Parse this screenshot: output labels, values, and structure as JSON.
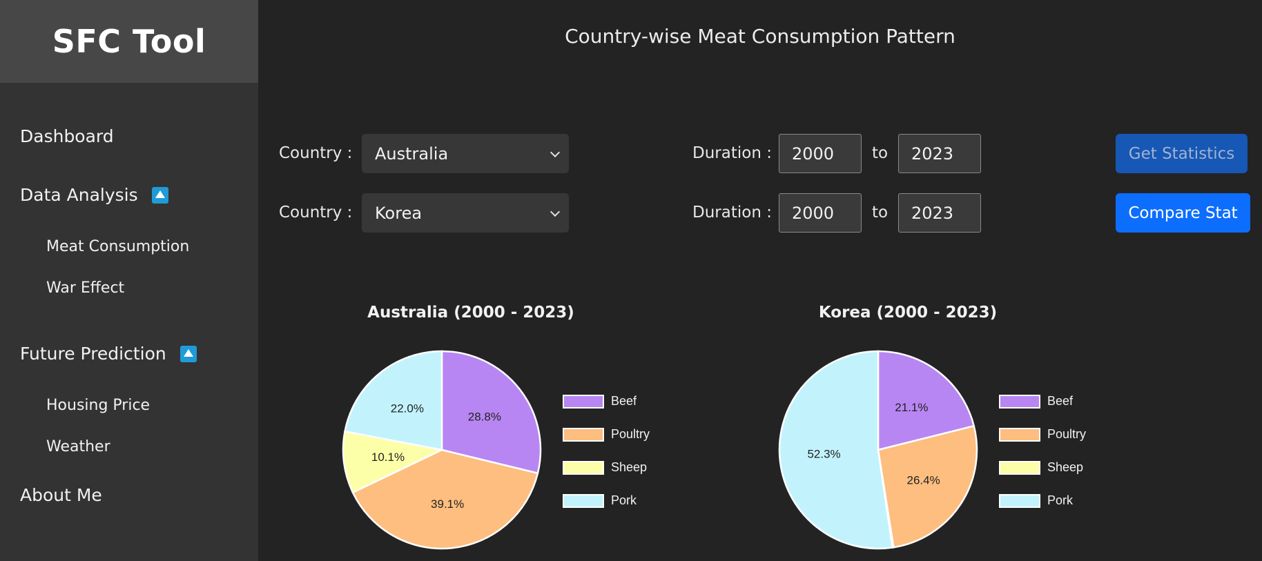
{
  "app": {
    "title": "SFC Tool"
  },
  "sidebar": {
    "items": [
      {
        "label": "Dashboard"
      },
      {
        "label": "Data Analysis",
        "icon": "caret-up-icon",
        "children": [
          {
            "label": "Meat Consumption"
          },
          {
            "label": "War Effect"
          }
        ]
      },
      {
        "label": "Future Prediction",
        "icon": "caret-up-icon",
        "children": [
          {
            "label": "Housing Price"
          },
          {
            "label": "Weather"
          }
        ]
      },
      {
        "label": "About Me"
      }
    ]
  },
  "main": {
    "title": "Country-wise Meat Consumption Pattern",
    "rows": [
      {
        "country_label": "Country :",
        "country": "Australia",
        "duration_label": "Duration :",
        "from": "2000",
        "to_label": "to",
        "to": "2023"
      },
      {
        "country_label": "Country :",
        "country": "Korea",
        "duration_label": "Duration :",
        "from": "2000",
        "to_label": "to",
        "to": "2023"
      }
    ],
    "buttons": {
      "get_stats": "Get Statistics",
      "compare": "Compare Stat"
    }
  },
  "colors": {
    "beef": "#b886f3",
    "poultry": "#fdbe7f",
    "sheep": "#fdfea8",
    "pork": "#c2f3fd",
    "accent": "#0d6efd"
  },
  "chart_data": [
    {
      "type": "pie",
      "title": "Australia (2000 - 2023)",
      "categories": [
        "Beef",
        "Poultry",
        "Sheep",
        "Pork"
      ],
      "values": [
        28.8,
        39.1,
        10.1,
        22.0
      ],
      "labels": [
        "28.8%",
        "39.1%",
        "10.1%",
        "22.0%"
      ],
      "colors": [
        "#b886f3",
        "#fdbe7f",
        "#fdfea8",
        "#c2f3fd"
      ],
      "legend": "right"
    },
    {
      "type": "pie",
      "title": "Korea (2000 - 2023)",
      "categories": [
        "Beef",
        "Poultry",
        "Sheep",
        "Pork"
      ],
      "values": [
        21.1,
        26.4,
        0.2,
        52.3
      ],
      "labels": [
        "21.1%",
        "26.4%",
        "",
        "52.3%"
      ],
      "colors": [
        "#b886f3",
        "#fdbe7f",
        "#fdfea8",
        "#c2f3fd"
      ],
      "legend": "right"
    }
  ]
}
